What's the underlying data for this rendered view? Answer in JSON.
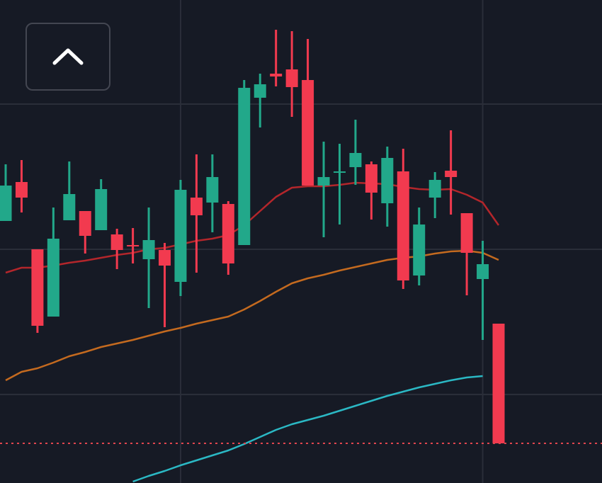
{
  "chart_data": {
    "type": "candlestick",
    "categories": [
      null,
      null,
      null,
      null,
      null,
      null,
      null,
      null,
      null,
      null,
      null,
      null,
      null,
      null,
      null,
      null,
      null,
      null,
      null,
      null,
      null,
      null,
      null,
      null,
      null,
      null,
      null,
      null,
      null,
      null,
      null,
      null
    ],
    "open": [
      370,
      425,
      330,
      235,
      371,
      384,
      357,
      351,
      336,
      316,
      329,
      284,
      403,
      396,
      394,
      336,
      544,
      578,
      584,
      569,
      420,
      438,
      446,
      450,
      395,
      440,
      293,
      403,
      441,
      381,
      288,
      225
    ],
    "high": [
      450,
      456,
      330,
      389,
      454,
      384,
      429,
      359,
      360,
      389,
      339,
      428,
      464,
      464,
      398,
      569,
      578,
      640,
      638,
      627,
      482,
      479,
      513,
      454,
      475,
      472,
      389,
      439,
      498,
      381,
      342,
      225
    ],
    "low": [
      370,
      382,
      212,
      235,
      371,
      324,
      357,
      302,
      310,
      247,
      220,
      264,
      297,
      354,
      294,
      336,
      502,
      560,
      517,
      420,
      347,
      365,
      421,
      372,
      362,
      274,
      279,
      374,
      379,
      265,
      202,
      56
    ],
    "close": [
      420,
      403,
      222,
      345,
      408,
      349,
      415,
      329,
      334,
      343,
      307,
      414,
      378,
      432,
      310,
      558,
      563,
      574,
      559,
      420,
      432,
      440,
      466,
      410,
      459,
      286,
      365,
      428,
      432,
      325,
      309,
      56
    ],
    "up_color": "#22a88a",
    "down_color": "#f23a4f",
    "lines": [
      {
        "color": "#b3262b",
        "values": [
          297,
          304,
          304,
          307,
          311,
          314,
          318,
          322,
          325,
          330,
          332,
          337,
          342,
          345,
          350,
          364,
          384,
          404,
          417,
          419,
          419,
          421,
          424,
          423,
          422,
          418,
          415,
          414,
          415,
          407,
          396,
          364
        ]
      },
      {
        "color": "#c46a1f",
        "values": [
          145,
          157,
          162,
          170,
          179,
          185,
          192,
          197,
          202,
          208,
          214,
          219,
          225,
          230,
          235,
          245,
          257,
          270,
          282,
          289,
          294,
          300,
          305,
          310,
          315,
          318,
          320,
          324,
          327,
          328,
          325,
          315
        ]
      },
      {
        "color": "#2bb8c4",
        "values": [
          null,
          null,
          null,
          null,
          null,
          null,
          null,
          null,
          2,
          10,
          17,
          25,
          32,
          39,
          46,
          55,
          65,
          75,
          83,
          89,
          95,
          102,
          109,
          116,
          123,
          129,
          135,
          140,
          145,
          149,
          151,
          null
        ]
      }
    ],
    "price_line": {
      "value": 56,
      "color": "#e0454f"
    },
    "ylim": [
      0,
      682
    ],
    "yticks": [
      535,
      330,
      125
    ],
    "xticks": [
      11,
      30
    ],
    "grid": true
  }
}
